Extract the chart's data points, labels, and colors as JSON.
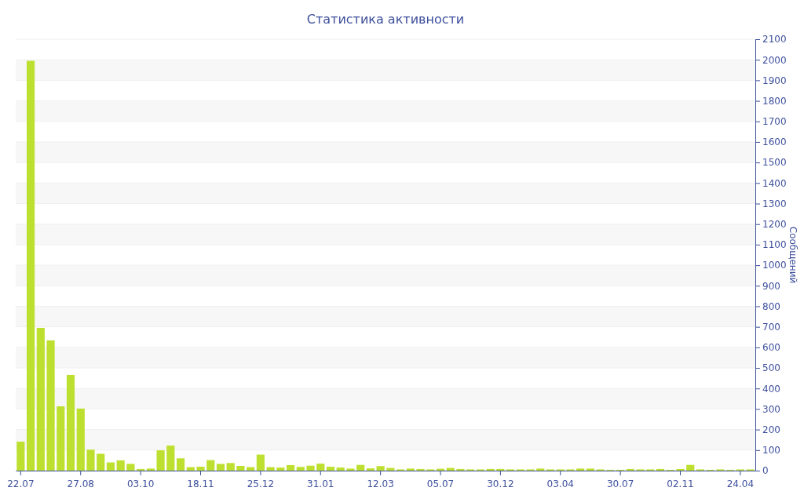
{
  "chart_data": {
    "type": "bar",
    "title": "Статистика активности",
    "ylabel": "Сообщений",
    "categories": [
      "22.07",
      null,
      null,
      null,
      null,
      null,
      "27.08",
      null,
      null,
      null,
      null,
      null,
      "03.10",
      null,
      null,
      null,
      null,
      null,
      "18.11",
      null,
      null,
      null,
      null,
      null,
      "25.12",
      null,
      null,
      null,
      null,
      null,
      "31.01",
      null,
      null,
      null,
      null,
      null,
      "12.03",
      null,
      null,
      null,
      null,
      null,
      "05.07",
      null,
      null,
      null,
      null,
      null,
      "30.12",
      null,
      null,
      null,
      null,
      null,
      "03.04",
      null,
      null,
      null,
      null,
      null,
      "30.07",
      null,
      null,
      null,
      null,
      null,
      "02.11",
      null,
      null,
      null,
      null,
      null,
      "24.04",
      null
    ],
    "values": [
      141,
      1995,
      695,
      634,
      313,
      466,
      302,
      102,
      82,
      40,
      50,
      33,
      8,
      10,
      99,
      122,
      60,
      17,
      19,
      51,
      33,
      37,
      23,
      17,
      78,
      17,
      15,
      27,
      18,
      24,
      34,
      19,
      15,
      10,
      28,
      11,
      22,
      13,
      6,
      10,
      8,
      6,
      9,
      13,
      8,
      6,
      6,
      8,
      8,
      6,
      6,
      6,
      10,
      6,
      6,
      6,
      10,
      10,
      6,
      4,
      4,
      8,
      6,
      6,
      8,
      4,
      8,
      28,
      6,
      4,
      6,
      4,
      6,
      6
    ],
    "color": "#bde030",
    "ylim": [
      0,
      2100
    ],
    "yticks": [
      0,
      100,
      200,
      300,
      400,
      500,
      600,
      700,
      800,
      900,
      1000,
      1100,
      1200,
      1300,
      1400,
      1500,
      1600,
      1700,
      1800,
      1900,
      2000,
      2100
    ],
    "grid": "y"
  }
}
